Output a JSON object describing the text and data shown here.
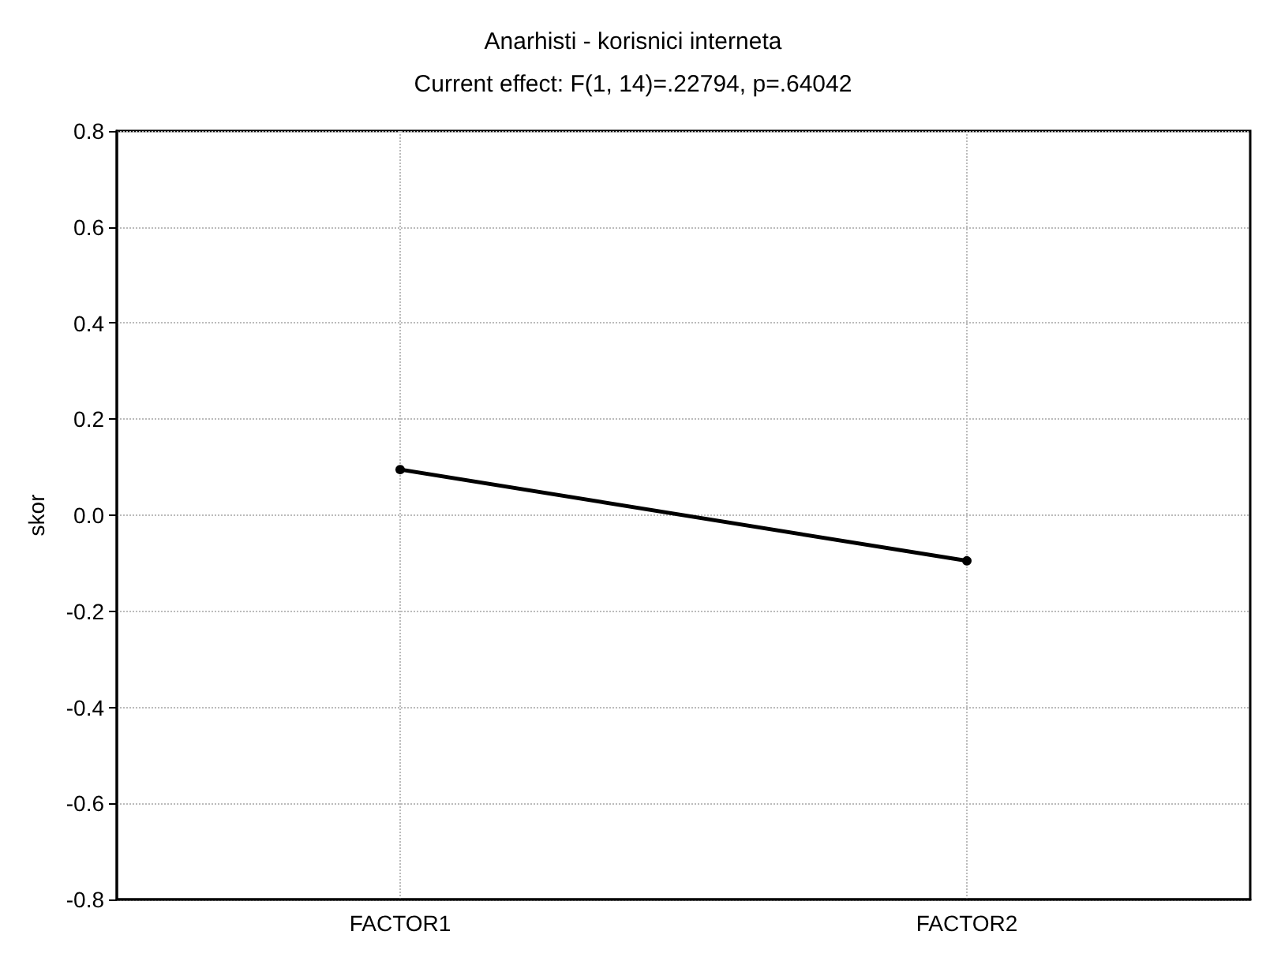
{
  "chart_data": {
    "type": "line",
    "title": "Anarhisti - korisnici interneta",
    "subtitle": "Current effect: F(1, 14)=.22794, p=.64042",
    "ylabel": "skor",
    "categories": [
      "FACTOR1",
      "FACTOR2"
    ],
    "series": [
      {
        "color": "#000000",
        "values": [
          0.095,
          -0.095
        ]
      }
    ],
    "ylim": [
      -0.8,
      0.8
    ],
    "yticks": [
      -0.8,
      -0.6,
      -0.4,
      -0.2,
      {
        "value": 0,
        "label": "0.0"
      },
      0.2,
      0.4,
      0.6,
      0.8
    ],
    "grid": true,
    "marker": "circle",
    "line_style": "solid"
  }
}
